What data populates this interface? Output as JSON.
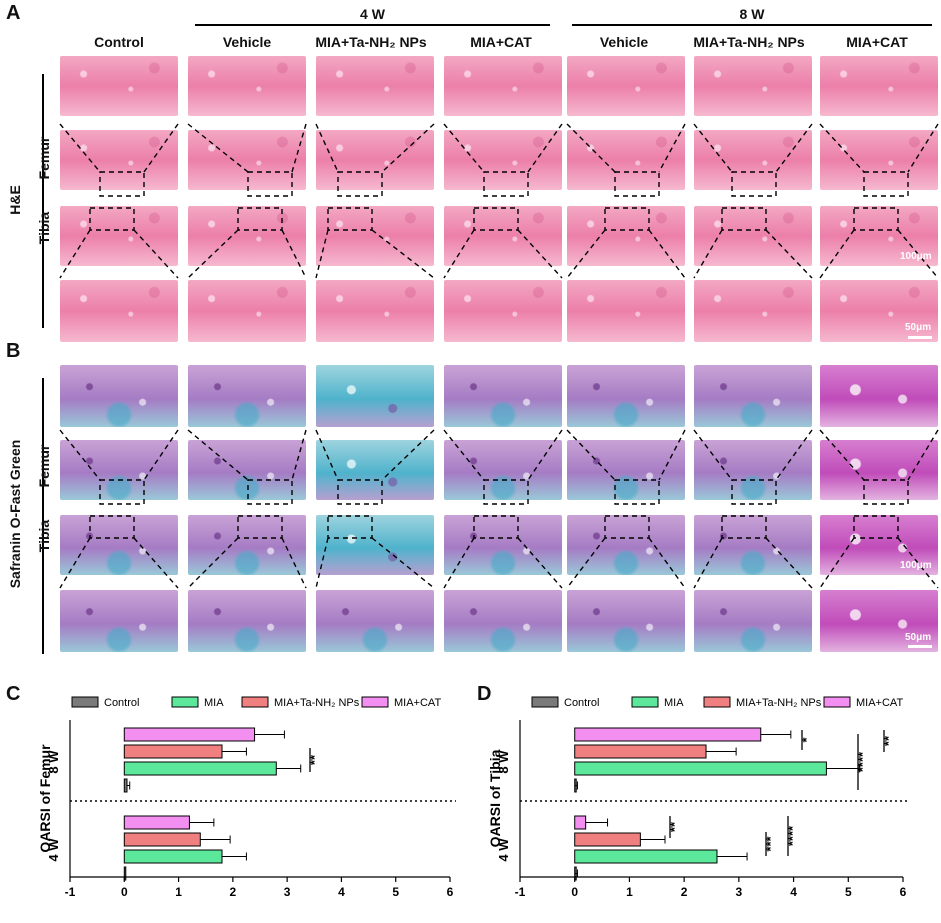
{
  "panels": {
    "a": "A",
    "b": "B",
    "c": "C",
    "d": "D"
  },
  "groups": {
    "w4": "4 W",
    "w8": "8 W"
  },
  "columns": [
    "Control",
    "Vehicle",
    "MIA+Ta-NH₂ NPs",
    "MIA+CAT",
    "Vehicle",
    "MIA+Ta-NH₂ NPs",
    "MIA+CAT"
  ],
  "stains": {
    "he": "H&E",
    "so": "Safranin O-Fast Green"
  },
  "rows": {
    "femur": "Femur",
    "tibia": "Tibia"
  },
  "scales": {
    "s100": "100μm",
    "s50": "50μm"
  },
  "legend": [
    "Control",
    "MIA",
    "MIA+Ta-NH₂ NPs",
    "MIA+CAT"
  ],
  "colors": {
    "Control": "#7a7a7a",
    "MIA": "#5ce89a",
    "MIA+Ta-NH₂ NPs": "#f07f7f",
    "MIA+CAT": "#f28ff0"
  },
  "chart_data": [
    {
      "type": "bar",
      "orientation": "horizontal",
      "title": "",
      "ylabel": "OARSI of Femur",
      "xlim": [
        -1,
        6
      ],
      "xticks": [
        "-1",
        "0",
        "1",
        "2",
        "3",
        "4",
        "5",
        "6"
      ],
      "groups": [
        "8 W",
        "4 W"
      ],
      "series": [
        {
          "name": "MIA+CAT",
          "values": [
            2.4,
            1.2
          ],
          "err": [
            0.55,
            0.45
          ]
        },
        {
          "name": "MIA+Ta-NH₂ NPs",
          "values": [
            1.8,
            1.4
          ],
          "err": [
            0.45,
            0.55
          ]
        },
        {
          "name": "MIA",
          "values": [
            2.8,
            1.8
          ],
          "err": [
            0.45,
            0.45
          ]
        },
        {
          "name": "Control",
          "values": [
            0.05,
            0.0
          ],
          "err": [
            0.05,
            0.0
          ]
        }
      ],
      "sig": [
        {
          "label": "**",
          "group": "8 W"
        }
      ]
    },
    {
      "type": "bar",
      "orientation": "horizontal",
      "title": "",
      "ylabel": "OARSI of Tibia",
      "xlim": [
        -1,
        6
      ],
      "xticks": [
        "-1",
        "0",
        "1",
        "2",
        "3",
        "4",
        "5",
        "6"
      ],
      "groups": [
        "8 W",
        "4 W"
      ],
      "series": [
        {
          "name": "MIA+CAT",
          "values": [
            3.4,
            0.2
          ],
          "err": [
            0.55,
            0.4
          ]
        },
        {
          "name": "MIA+Ta-NH₂ NPs",
          "values": [
            2.4,
            1.2
          ],
          "err": [
            0.55,
            0.45
          ]
        },
        {
          "name": "MIA",
          "values": [
            4.6,
            2.6
          ],
          "err": [
            0.6,
            0.55
          ]
        },
        {
          "name": "Control",
          "values": [
            0.0,
            0.0
          ],
          "err": [
            0.05,
            0.05
          ]
        }
      ],
      "sig": [
        {
          "label": "*",
          "group": "8 W"
        },
        {
          "label": "****",
          "group": "8 W"
        },
        {
          "label": "**",
          "group": "8 W"
        },
        {
          "label": "**",
          "group": "4 W"
        },
        {
          "label": "***",
          "group": "4 W"
        },
        {
          "label": "****",
          "group": "4 W"
        }
      ]
    }
  ]
}
